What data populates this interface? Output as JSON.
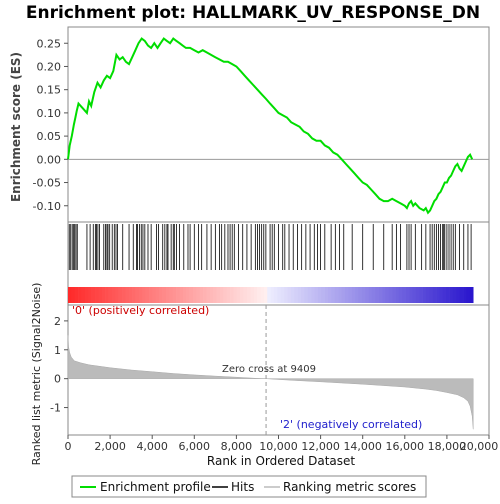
{
  "chart_data": [
    {
      "type": "line",
      "title": "Enrichment plot: HALLMARK_UV_RESPONSE_DN",
      "ylabel": "Enrichment score (ES)",
      "ylim": [
        -0.135,
        0.285
      ],
      "xlim": [
        0,
        20000
      ],
      "y_ticks": [
        "0.25",
        "0.20",
        "0.15",
        "0.10",
        "0.05",
        "0.00",
        "-0.05",
        "-0.10"
      ],
      "y_tick_values": [
        0.25,
        0.2,
        0.15,
        0.1,
        0.05,
        0.0,
        -0.05,
        -0.1
      ],
      "grid": false,
      "color": "#00dd00",
      "series": [
        {
          "name": "Enrichment profile",
          "x": [
            0,
            80,
            180,
            280,
            350,
            420,
            500,
            700,
            900,
            1000,
            1100,
            1250,
            1400,
            1550,
            1700,
            1850,
            2000,
            2150,
            2300,
            2450,
            2600,
            2750,
            2900,
            3050,
            3200,
            3350,
            3500,
            3650,
            3800,
            3950,
            4100,
            4250,
            4400,
            4550,
            4700,
            4850,
            5000,
            5150,
            5300,
            5450,
            5600,
            5800,
            6000,
            6200,
            6400,
            6600,
            6800,
            7000,
            7200,
            7400,
            7600,
            7800,
            8000,
            8200,
            8400,
            8600,
            8800,
            9000,
            9200,
            9409,
            9600,
            9800,
            10000,
            10200,
            10400,
            10600,
            10800,
            11000,
            11200,
            11400,
            11600,
            11800,
            12000,
            12200,
            12400,
            12600,
            12800,
            13000,
            13200,
            13400,
            13600,
            13800,
            14000,
            14200,
            14400,
            14600,
            14800,
            15000,
            15200,
            15400,
            15600,
            15800,
            16000,
            16100,
            16200,
            16300,
            16400,
            16500,
            16700,
            16900,
            17000,
            17100,
            17200,
            17300,
            17400,
            17500,
            17600,
            17700,
            17800,
            17900,
            18000,
            18100,
            18200,
            18300,
            18400,
            18500,
            18600,
            18700,
            18800,
            18900,
            19000,
            19100,
            19200
          ],
          "values": [
            0.0,
            0.03,
            0.05,
            0.075,
            0.09,
            0.105,
            0.12,
            0.11,
            0.1,
            0.125,
            0.115,
            0.145,
            0.165,
            0.155,
            0.17,
            0.18,
            0.175,
            0.19,
            0.225,
            0.215,
            0.22,
            0.21,
            0.205,
            0.22,
            0.235,
            0.25,
            0.26,
            0.255,
            0.245,
            0.24,
            0.25,
            0.24,
            0.25,
            0.26,
            0.255,
            0.25,
            0.26,
            0.255,
            0.25,
            0.245,
            0.24,
            0.24,
            0.235,
            0.23,
            0.235,
            0.23,
            0.225,
            0.22,
            0.215,
            0.21,
            0.21,
            0.205,
            0.2,
            0.19,
            0.18,
            0.17,
            0.16,
            0.15,
            0.14,
            0.13,
            0.12,
            0.11,
            0.1,
            0.095,
            0.09,
            0.08,
            0.075,
            0.07,
            0.06,
            0.055,
            0.045,
            0.04,
            0.04,
            0.03,
            0.025,
            0.015,
            0.01,
            0.0,
            -0.01,
            -0.02,
            -0.03,
            -0.04,
            -0.05,
            -0.055,
            -0.065,
            -0.075,
            -0.085,
            -0.09,
            -0.09,
            -0.085,
            -0.09,
            -0.095,
            -0.1,
            -0.105,
            -0.095,
            -0.09,
            -0.1,
            -0.095,
            -0.105,
            -0.11,
            -0.105,
            -0.115,
            -0.11,
            -0.1,
            -0.09,
            -0.085,
            -0.075,
            -0.07,
            -0.06,
            -0.05,
            -0.05,
            -0.04,
            -0.035,
            -0.025,
            -0.015,
            -0.01,
            -0.02,
            -0.025,
            -0.015,
            -0.005,
            0.005,
            0.01,
            0.0
          ]
        }
      ]
    },
    {
      "type": "scatter",
      "description_free": true,
      "series": [
        {
          "name": "Hits",
          "x": [
            60,
            130,
            200,
            270,
            320,
            380,
            440,
            900,
            1050,
            1200,
            1300,
            1350,
            1420,
            1500,
            1700,
            1780,
            1850,
            1900,
            1980,
            2100,
            2200,
            2280,
            2350,
            2600,
            2900,
            3100,
            3250,
            3300,
            3400,
            3480,
            3560,
            3650,
            3800,
            3950,
            4200,
            4300,
            4500,
            4600,
            4700,
            4750,
            4900,
            5000,
            5050,
            5150,
            5300,
            5500,
            5700,
            5800,
            6000,
            6200,
            6350,
            6600,
            6800,
            7000,
            7200,
            7300,
            7450,
            7600,
            7700,
            7800,
            7900,
            8100,
            8300,
            8500,
            8700,
            8900,
            9000,
            9100,
            9200,
            9300,
            9400,
            9600,
            9700,
            9800,
            10000,
            10200,
            10300,
            10500,
            10700,
            10900,
            11100,
            11300,
            11500,
            11700,
            11850,
            12000,
            12200,
            12500,
            12700,
            12900,
            13100,
            13500,
            14000,
            14500,
            15000,
            15400,
            15600,
            15800,
            16100,
            16200,
            16300,
            16500,
            16800,
            17000,
            17200,
            17300,
            17400,
            17500,
            17600,
            17700,
            17800,
            17850,
            17900,
            18000,
            18100,
            18200,
            18300,
            18400,
            18600,
            18800,
            19000,
            19150
          ]
        }
      ]
    },
    {
      "type": "area",
      "ylabel": "Ranked list metric (Signal2Noise)",
      "xlabel": "Rank in Ordered Dataset",
      "ylim": [
        -1.95,
        2.55
      ],
      "xlim": [
        0,
        20000
      ],
      "y_ticks": [
        "2",
        "1",
        "0",
        "-1"
      ],
      "y_tick_values": [
        2,
        1,
        0,
        -1
      ],
      "x_ticks": [
        "0",
        "2,000",
        "4,000",
        "6,000",
        "8,000",
        "10,000",
        "12,000",
        "14,000",
        "16,000",
        "18,000",
        "20,000"
      ],
      "x_tick_values": [
        0,
        2000,
        4000,
        6000,
        8000,
        10000,
        12000,
        14000,
        16000,
        18000,
        20000
      ],
      "series": [
        {
          "name": "Ranking metric scores",
          "x": [
            0,
            30,
            80,
            150,
            300,
            600,
            1000,
            2000,
            3000,
            4000,
            5000,
            6000,
            7000,
            8000,
            9000,
            9409,
            10000,
            11000,
            12000,
            13000,
            14000,
            15000,
            16000,
            17000,
            17500,
            18000,
            18500,
            18800,
            19000,
            19100,
            19200,
            19250
          ],
          "values": [
            1.5,
            1.1,
            0.9,
            0.75,
            0.62,
            0.55,
            0.48,
            0.38,
            0.3,
            0.24,
            0.18,
            0.13,
            0.09,
            0.05,
            0.01,
            0.0,
            -0.03,
            -0.07,
            -0.11,
            -0.15,
            -0.19,
            -0.24,
            -0.29,
            -0.36,
            -0.41,
            -0.48,
            -0.56,
            -0.66,
            -0.78,
            -0.95,
            -1.3,
            -1.75
          ]
        }
      ],
      "annotations": [
        "'0' (positively correlated)",
        "Zero cross at 9409",
        "'2' (negatively correlated)"
      ],
      "zero_cross": 9409
    }
  ],
  "legend": {
    "items": [
      {
        "label": "Enrichment profile",
        "color": "#00dd00"
      },
      {
        "label": "Hits",
        "color": "#000000"
      },
      {
        "label": "Ranking metric scores",
        "color": "#bbbbbb"
      }
    ],
    "placement": "bottom"
  }
}
